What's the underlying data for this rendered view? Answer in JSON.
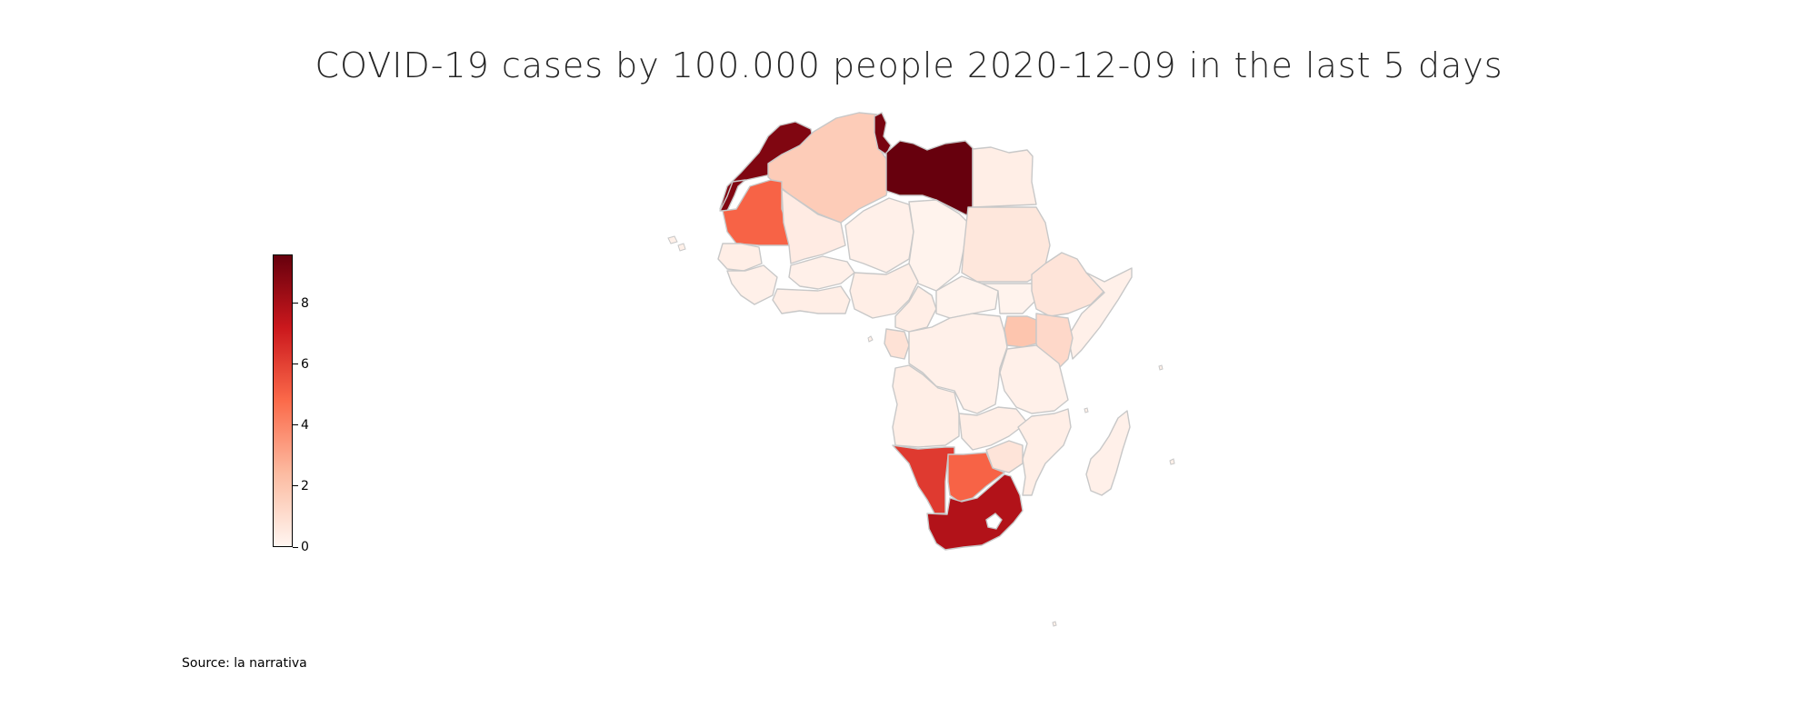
{
  "title": "COVID-19 cases by 100.000 people 2020-12-09 in the last 5 days",
  "source": "Source: la narrativa",
  "colorbar": {
    "min": 0,
    "max": 9.6,
    "colors": [
      "#fff5f0",
      "#fcbba1",
      "#fb6a4a",
      "#cb181d",
      "#67000d"
    ],
    "ticks": [
      "0",
      "2",
      "4",
      "6",
      "8"
    ],
    "tick_values": [
      0,
      2,
      4,
      6,
      8
    ]
  },
  "chart_data": {
    "type": "choropleth",
    "region": "Africa",
    "values": {
      "Morocco": 9.0,
      "Western Sahara": 9.0,
      "Algeria": 1.7,
      "Tunisia": 9.2,
      "Libya": 9.6,
      "Egypt": 0.3,
      "Mauritania": 5.0,
      "Mali": 0.4,
      "Niger": 0.2,
      "Chad": 0.1,
      "Sudan": 0.6,
      "Senegal": 0.3,
      "Guinea": 0.2,
      "Burkina Faso": 0.2,
      "Nigeria": 0.3,
      "Ghana": 0.3,
      "Cameroon": 0.3,
      "Central African Republic": 0.1,
      "South Sudan": 0.1,
      "Ethiopia": 0.7,
      "Somalia": 0.2,
      "Uganda": 2.0,
      "Kenya": 1.2,
      "Gabon": 0.8,
      "DR Congo": 0.2,
      "Tanzania": 0.2,
      "Angola": 0.3,
      "Zambia": 0.3,
      "Mozambique": 0.3,
      "Zimbabwe": 0.7,
      "Namibia": 6.2,
      "Botswana": 5.0,
      "South Africa": 7.8,
      "Madagascar": 0.2
    }
  }
}
